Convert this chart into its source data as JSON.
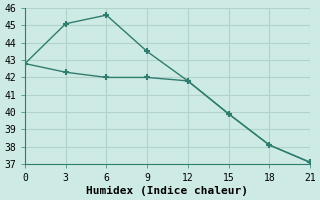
{
  "line1_x": [
    0,
    3,
    6,
    9,
    12,
    15,
    18,
    21
  ],
  "line1_y": [
    42.8,
    45.1,
    45.6,
    43.5,
    41.8,
    39.9,
    38.1,
    37.1
  ],
  "line2_x": [
    0,
    3,
    6,
    9,
    12,
    15,
    18,
    21
  ],
  "line2_y": [
    42.8,
    42.3,
    42.0,
    42.0,
    41.8,
    39.9,
    38.1,
    37.1
  ],
  "line_color": "#2e7d6e",
  "marker": "+",
  "marker_size": 5,
  "marker_lw": 1.5,
  "xlabel": "Humidex (Indice chaleur)",
  "xlabel_fontsize": 8,
  "xlim": [
    0,
    21
  ],
  "ylim": [
    37,
    46
  ],
  "xticks": [
    0,
    3,
    6,
    9,
    12,
    15,
    18,
    21
  ],
  "yticks": [
    37,
    38,
    39,
    40,
    41,
    42,
    43,
    44,
    45,
    46
  ],
  "bg_color": "#ceeae4",
  "grid_color": "#b0d4cc",
  "line_width": 1.0,
  "tick_fontsize": 7,
  "spine_color": "#2e7d6e"
}
